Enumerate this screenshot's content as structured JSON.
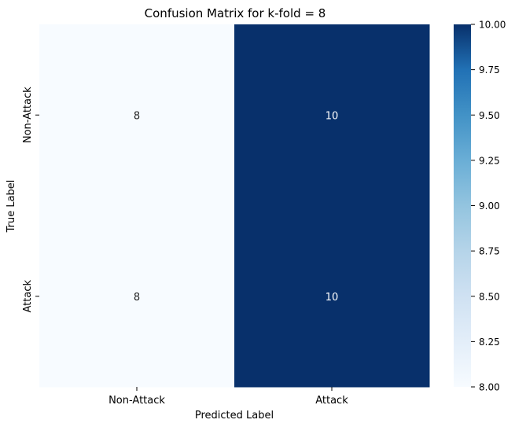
{
  "chart_data": {
    "type": "heatmap",
    "title": "Confusion Matrix for k-fold = 8",
    "xlabel": "Predicted Label",
    "ylabel": "True Label",
    "x_categories": [
      "Non-Attack",
      "Attack"
    ],
    "y_categories": [
      "Non-Attack",
      "Attack"
    ],
    "values": [
      [
        8,
        10
      ],
      [
        8,
        10
      ]
    ],
    "colorbar": {
      "range": [
        8.0,
        10.0
      ],
      "ticks": [
        "8.00",
        "8.25",
        "8.50",
        "8.75",
        "9.00",
        "9.25",
        "9.50",
        "9.75",
        "10.00"
      ],
      "colormap": "Blues"
    },
    "legend": "colorbar at right",
    "grid": false
  }
}
